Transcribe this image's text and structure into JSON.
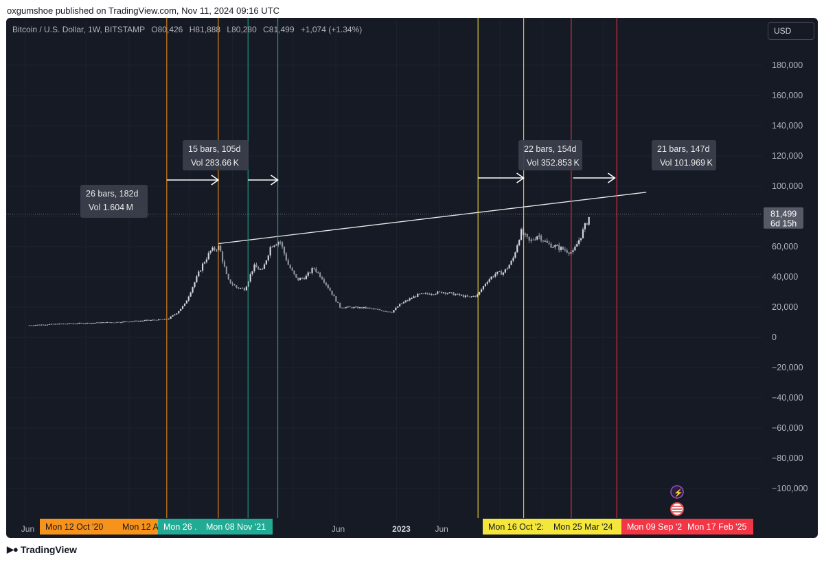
{
  "header": {
    "published": "oxgumshoe published on TradingView.com, Nov 11, 2024 09:16 UTC"
  },
  "symbol": {
    "name": "Bitcoin / U.S. Dollar, 1W, BITSTAMP",
    "open": "O80,426",
    "high": "H81,888",
    "low": "L80,280",
    "close": "C81,499",
    "change": "+1,074 (+1.34%)"
  },
  "currency_button": "USD",
  "footer": {
    "brand": "TradingView",
    "logo": "tradingview-logo-icon"
  },
  "colors": {
    "background": "#161a25",
    "candle": "#b2b5be",
    "orange": "#f7931a",
    "teal": "#22ab94",
    "yellow": "#f5e63b",
    "red": "#f23645"
  },
  "chart_data": {
    "type": "line",
    "title": "",
    "series": [
      {
        "x": [
          "2019-06",
          "2019-10",
          "2020-01",
          "2020-04",
          "2020-07",
          "2020-10",
          "2020-11",
          "2020-12",
          "2021-01",
          "2021-02",
          "2021-03",
          "2021-04",
          "2021-05",
          "2021-06",
          "2021-07",
          "2021-08",
          "2021-09",
          "2021-10",
          "2021-11",
          "2021-12",
          "2022-01",
          "2022-02",
          "2022-03",
          "2022-04",
          "2022-05",
          "2022-06",
          "2022-09",
          "2022-12",
          "2023-01",
          "2023-03",
          "2023-06",
          "2023-09",
          "2023-10",
          "2023-11",
          "2023-12",
          "2024-01",
          "2024-02",
          "2024-03",
          "2024-04",
          "2024-05",
          "2024-06",
          "2024-07",
          "2024-08",
          "2024-09",
          "2024-10",
          "2024-11"
        ],
        "values": [
          8000,
          9000,
          9500,
          10000,
          11000,
          12000,
          16000,
          22000,
          35000,
          48000,
          57000,
          60000,
          38000,
          33000,
          32000,
          47000,
          44000,
          61000,
          64000,
          48000,
          38000,
          40000,
          46000,
          39000,
          30000,
          20000,
          19500,
          16800,
          22000,
          28000,
          30000,
          26500,
          28000,
          37000,
          42000,
          43000,
          51000,
          70000,
          63000,
          68000,
          62000,
          60000,
          58000,
          56000,
          68000,
          81499
        ]
      }
    ],
    "y_ticks": [
      "180,000",
      "160,000",
      "140,000",
      "120,000",
      "100,000",
      "80,000",
      "60,000",
      "40,000",
      "20,000",
      "0",
      "−20,000",
      "−40,000",
      "−60,000",
      "−80,000",
      "−100,000"
    ],
    "ylim": [
      -110000,
      200000
    ],
    "x_ticks": [
      "Jun",
      "Jun",
      "2023",
      "Jun",
      "Jun"
    ],
    "last_price_label": "81,499",
    "countdown_label": "6d 15h",
    "trendline": {
      "from": [
        "2021-04-12",
        62000
      ],
      "to": [
        "2025-06-01",
        96000
      ]
    },
    "date_labels": [
      {
        "text": "Mon 12 Oct '20",
        "color": "orange"
      },
      {
        "text": "Mon 12 A",
        "color": "orange"
      },
      {
        "text": "Mon 26 .",
        "color": "teal"
      },
      {
        "text": "Mon 08 Nov '21",
        "color": "teal"
      },
      {
        "text": "Mon 16 Oct '2:",
        "color": "yellow"
      },
      {
        "text": "Mon 25 Mar '24",
        "color": "yellow"
      },
      {
        "text": "Mon 09 Sep '2‹",
        "color": "red"
      },
      {
        "text": "Mon 17 Feb '25",
        "color": "red"
      }
    ],
    "measurements": [
      {
        "line1": "26 bars, 182d",
        "line2": "Vol 1.604 M",
        "color": "orange"
      },
      {
        "line1": "15 bars, 105d",
        "line2": "Vol 283.66 K",
        "color": "teal"
      },
      {
        "line1": "22 bars, 154d",
        "line2": "Vol 352.853 K",
        "color": "yellow"
      },
      {
        "line1": "21 bars, 147d",
        "line2": "Vol 101.969 K",
        "color": "red"
      }
    ]
  }
}
